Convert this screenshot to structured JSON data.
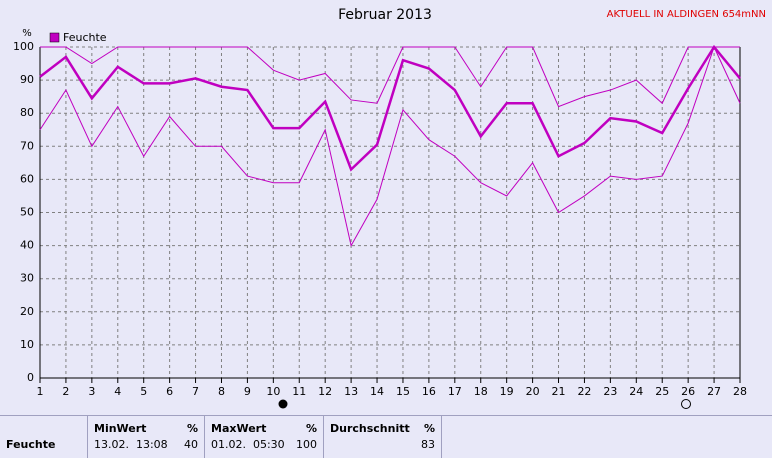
{
  "chart_data": {
    "type": "line",
    "title": "Februar 2013",
    "subtitle": "AKTUELL IN ALDINGEN 654mNN",
    "y_unit": "%",
    "legend": "Feuchte",
    "legend_color": "#c000c0",
    "grid": true,
    "x": [
      1,
      2,
      3,
      4,
      5,
      6,
      7,
      8,
      9,
      10,
      11,
      12,
      13,
      14,
      15,
      16,
      17,
      18,
      19,
      20,
      21,
      22,
      23,
      24,
      25,
      26,
      27,
      28
    ],
    "xlim": [
      1,
      28
    ],
    "xticks": [
      1,
      2,
      3,
      4,
      5,
      6,
      7,
      8,
      9,
      10,
      11,
      12,
      13,
      14,
      15,
      16,
      17,
      18,
      19,
      20,
      21,
      22,
      23,
      24,
      25,
      26,
      27,
      28
    ],
    "ylim": [
      0,
      100
    ],
    "yticks": [
      0,
      10,
      20,
      30,
      40,
      50,
      60,
      70,
      80,
      90,
      100
    ],
    "series": [
      {
        "color": "#c000c0",
        "line_width": 1,
        "values": [
          100,
          100,
          95,
          100,
          100,
          100,
          100,
          100,
          100,
          93,
          90,
          92,
          84,
          83,
          100,
          100,
          100,
          88,
          100,
          100,
          82,
          85,
          87,
          90,
          83,
          100,
          100,
          100
        ]
      },
      {
        "color": "#c000c0",
        "line_width": 2.5,
        "values": [
          91,
          97,
          84.5,
          94,
          89,
          89,
          90.5,
          88,
          87,
          75.5,
          75.5,
          83.5,
          63,
          70.5,
          96,
          93.5,
          87,
          73,
          83,
          83,
          67,
          71,
          78.5,
          77.5,
          74,
          87.5,
          100,
          90.5
        ]
      },
      {
        "color": "#c000c0",
        "line_width": 1,
        "values": [
          75,
          87,
          70,
          82,
          67,
          79,
          70,
          70,
          61,
          59,
          59,
          75,
          40,
          54,
          81,
          72,
          67,
          59,
          55,
          65,
          50,
          55,
          61,
          60,
          61,
          77,
          100,
          83
        ]
      }
    ]
  },
  "stats": {
    "row_label": "Feuchte",
    "min_header": "MinWert",
    "min_unit": "%",
    "min_time": "13.02.  13:08",
    "min_value": 40,
    "max_header": "MaxWert",
    "max_unit": "%",
    "max_time": "01.02.  05:30",
    "max_value": 100,
    "avg_header": "Durchschnitt",
    "avg_unit": "%",
    "avg_value": 83
  }
}
